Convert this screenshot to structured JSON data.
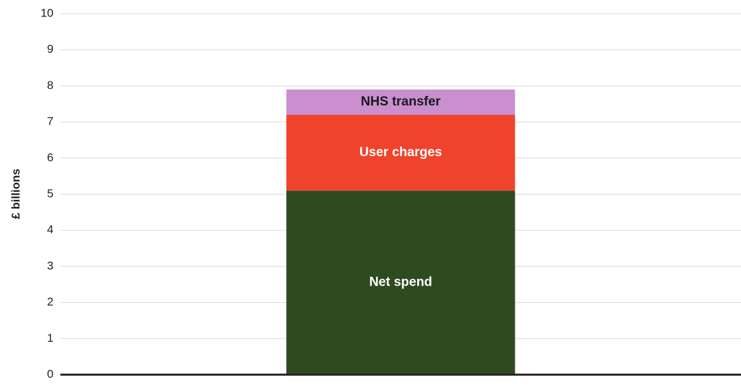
{
  "chart_data": {
    "type": "stacked_bar",
    "y_label": "£ billions",
    "categories": [
      null
    ],
    "series": [
      {
        "name": "Net spend",
        "color": "#2e4a1f",
        "label_color": "#ffffff",
        "values": [
          5.1
        ]
      },
      {
        "name": "User charges",
        "color": "#f0432b",
        "label_color": "#ffffff",
        "values": [
          2.1
        ]
      },
      {
        "name": "NHS transfer",
        "color": "#c98fcf",
        "label_color": "#1a1a1a",
        "values": [
          0.7
        ]
      }
    ],
    "ylim": [
      0,
      10
    ],
    "yticks": [
      0,
      1,
      2,
      3,
      4,
      5,
      6,
      7,
      8,
      9,
      10
    ],
    "grid": true
  }
}
